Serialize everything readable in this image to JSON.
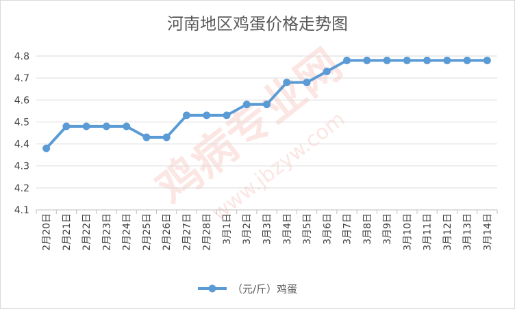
{
  "chart_data": {
    "type": "line",
    "title": "河南地区鸡蛋价格走势图",
    "categories": [
      "2月20日",
      "2月21日",
      "2月22日",
      "2月23日",
      "2月24日",
      "2月25日",
      "2月26日",
      "2月27日",
      "2月28日",
      "3月1日",
      "3月2日",
      "3月3日",
      "3月4日",
      "3月5日",
      "3月6日",
      "3月7日",
      "3月8日",
      "3月9日",
      "3月10日",
      "3月11日",
      "3月12日",
      "3月13日",
      "3月14日"
    ],
    "series": [
      {
        "name": "（元/斤）鸡蛋",
        "values": [
          4.38,
          4.48,
          4.48,
          4.48,
          4.48,
          4.43,
          4.43,
          4.53,
          4.53,
          4.53,
          4.58,
          4.58,
          4.68,
          4.68,
          4.73,
          4.78,
          4.78,
          4.78,
          4.78,
          4.78,
          4.78,
          4.78,
          4.78
        ]
      }
    ],
    "yticks": [
      "4.1",
      "4.2",
      "4.3",
      "4.4",
      "4.5",
      "4.6",
      "4.7",
      "4.8"
    ],
    "ylim": [
      4.1,
      4.8
    ],
    "xlabel": "",
    "ylabel": "",
    "grid": true,
    "legend_position": "bottom",
    "line_color": "#5b9bd5",
    "grid_color": "#d9d9d9"
  },
  "watermark": {
    "text_main": "鸡病专业网",
    "text_url": "www.jbzyw.com"
  }
}
